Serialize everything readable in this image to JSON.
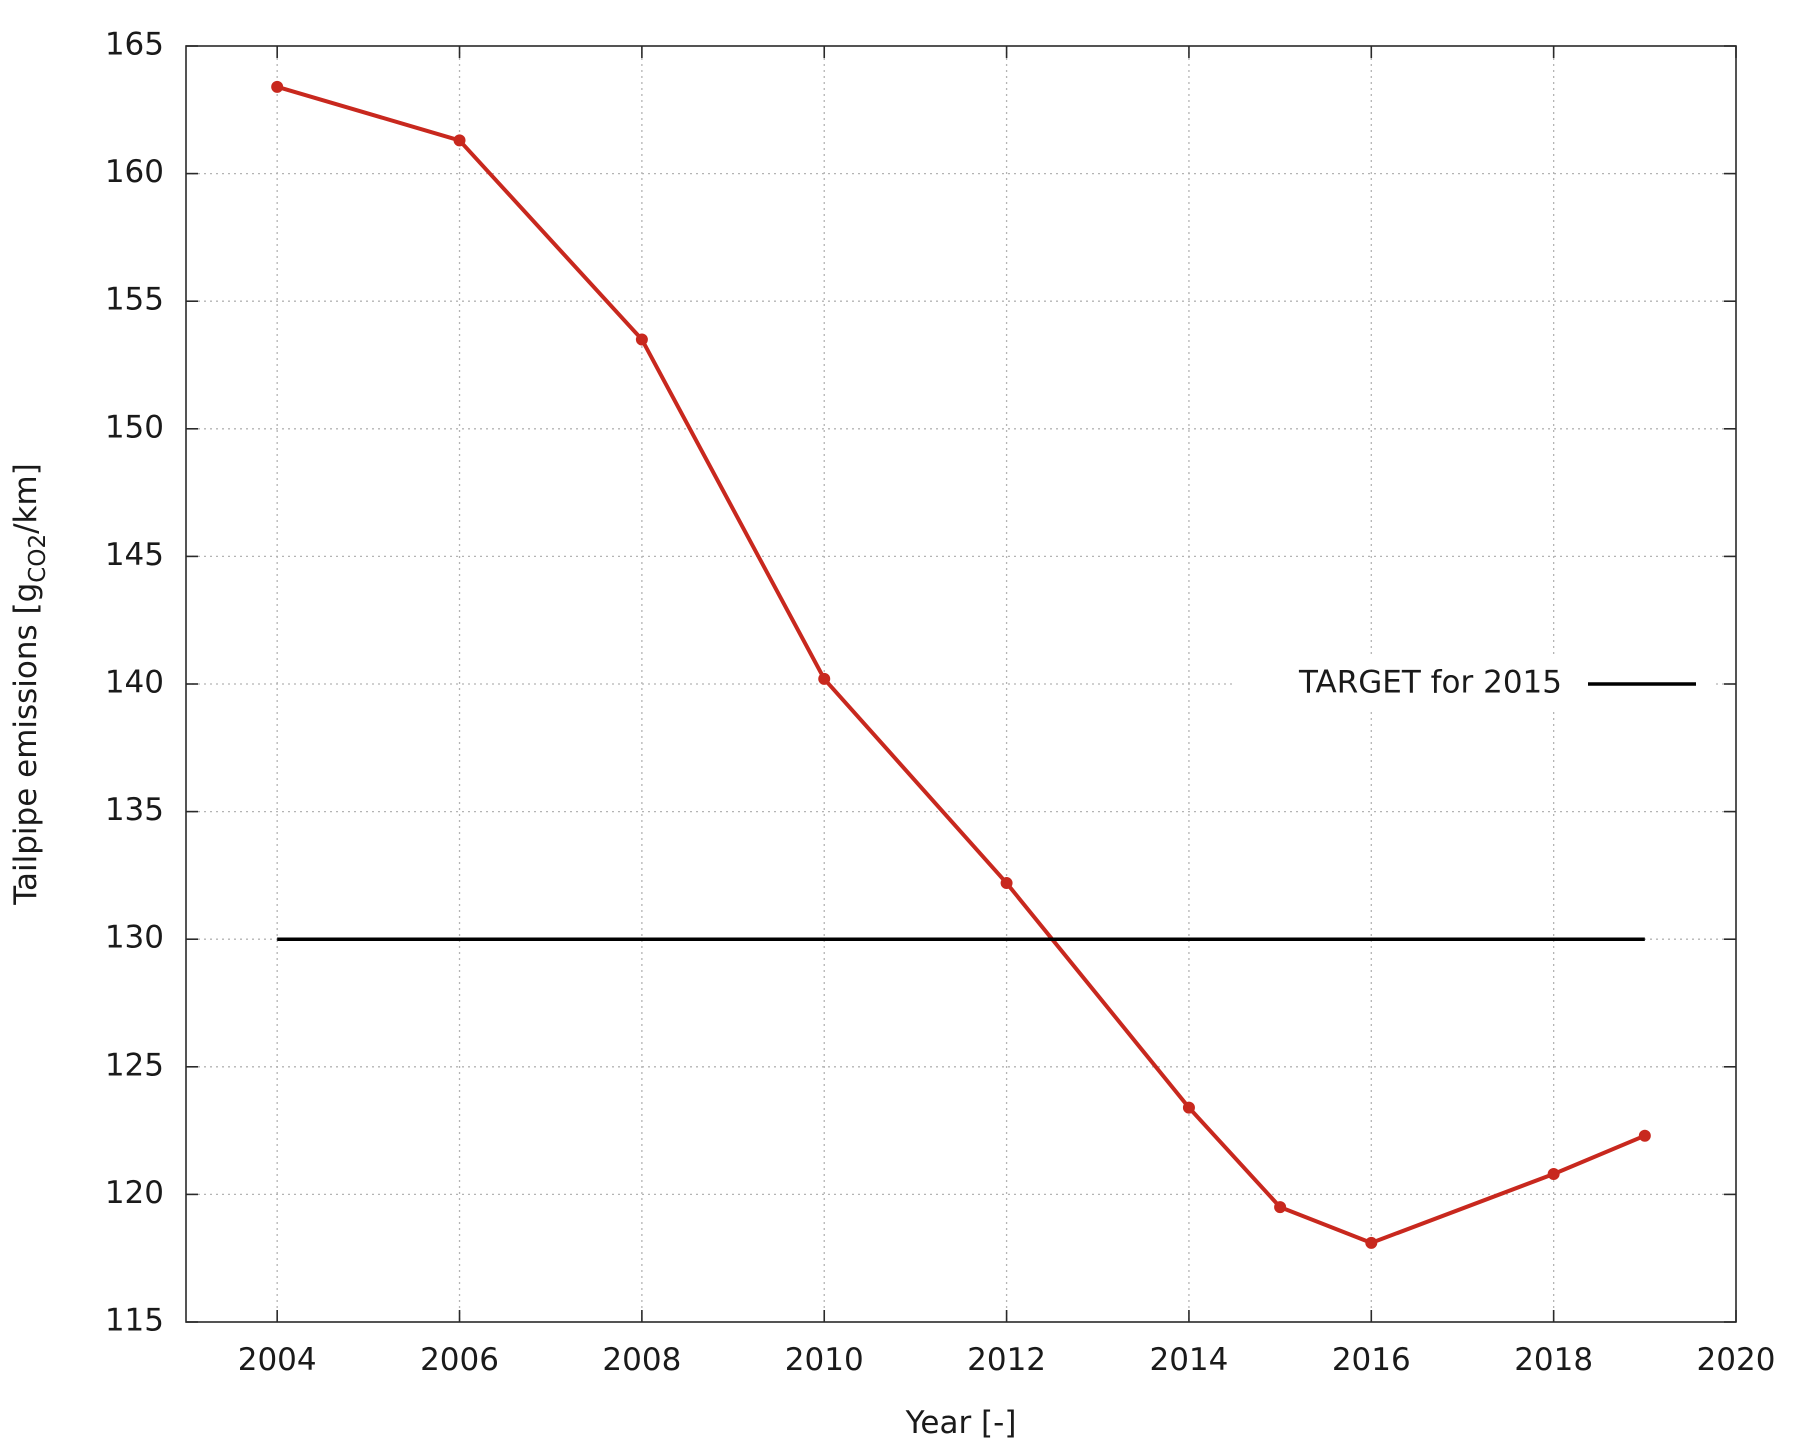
{
  "chart_data": {
    "type": "line",
    "xlabel": "Year [-]",
    "ylabel": {
      "prefix": "Tailpipe emissions [g",
      "subscript": "CO2",
      "suffix": "/km]"
    },
    "xlim": [
      2003,
      2020
    ],
    "ylim": [
      115,
      165
    ],
    "x_ticks": [
      2004,
      2006,
      2008,
      2010,
      2012,
      2014,
      2016,
      2018,
      2020
    ],
    "y_ticks": [
      115,
      120,
      125,
      130,
      135,
      140,
      145,
      150,
      155,
      160,
      165
    ],
    "grid": true,
    "legend_position": "right",
    "series": [
      {
        "color": "#c8281e",
        "marker": "circle",
        "x": [
          2004,
          2006,
          2008,
          2010,
          2012,
          2014,
          2015,
          2016,
          2018,
          2019
        ],
        "y": [
          163.4,
          161.3,
          153.5,
          140.2,
          132.2,
          123.4,
          119.5,
          118.1,
          120.8,
          122.3
        ]
      },
      {
        "name": "TARGET for 2015",
        "color": "#000000",
        "x": [
          2004,
          2019
        ],
        "y": [
          130,
          130
        ]
      }
    ]
  }
}
